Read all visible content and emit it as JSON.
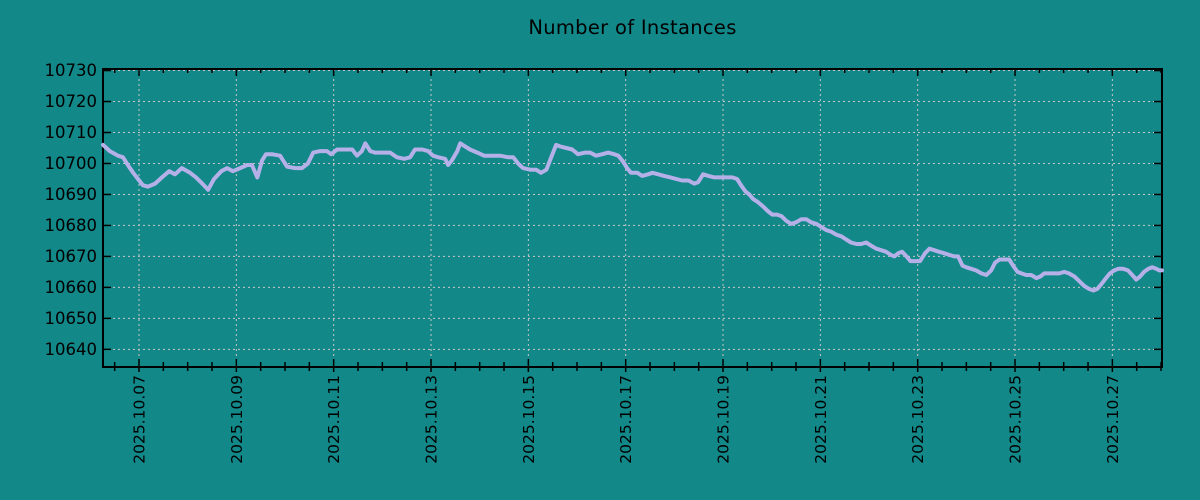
{
  "chart_data": {
    "type": "line",
    "title": "Number of Instances",
    "background_color": "#128889",
    "line_color": "#B6B0E8",
    "grid_color": "#C6C6C6",
    "axis_color": "#000000",
    "text_color": "#000000",
    "grid": true,
    "legend": "none",
    "x_axis": {
      "tick_labels": [
        "2025.10.07",
        "2025.10.09",
        "2025.10.11",
        "2025.10.13",
        "2025.10.15",
        "2025.10.17",
        "2025.10.19",
        "2025.10.21",
        "2025.10.23",
        "2025.10.25",
        "2025.10.27"
      ],
      "tick_days": [
        7,
        9,
        11,
        13,
        15,
        17,
        19,
        21,
        23,
        25,
        27
      ],
      "minor_tick_interval_days": 0.5,
      "range_days": [
        6.26,
        28.02
      ],
      "label_rotation_degrees": 90
    },
    "y_axis": {
      "tick_values": [
        10640,
        10650,
        10660,
        10670,
        10680,
        10690,
        10700,
        10710,
        10720,
        10730
      ],
      "range": [
        10634.3,
        10730.5
      ]
    },
    "series": [
      {
        "name": "instances",
        "points": [
          [
            6.26,
            10706
          ],
          [
            6.4,
            10704
          ],
          [
            6.57,
            10702.5
          ],
          [
            6.67,
            10702
          ],
          [
            6.77,
            10699.5
          ],
          [
            6.88,
            10697
          ],
          [
            6.98,
            10695
          ],
          [
            7.08,
            10693
          ],
          [
            7.18,
            10692.5
          ],
          [
            7.33,
            10693.5
          ],
          [
            7.47,
            10695.5
          ],
          [
            7.62,
            10697.5
          ],
          [
            7.74,
            10696.5
          ],
          [
            7.88,
            10698.5
          ],
          [
            8.05,
            10697
          ],
          [
            8.17,
            10695.5
          ],
          [
            8.3,
            10693.5
          ],
          [
            8.42,
            10691.5
          ],
          [
            8.54,
            10695
          ],
          [
            8.69,
            10697.5
          ],
          [
            8.81,
            10698.5
          ],
          [
            8.93,
            10697.5
          ],
          [
            9.08,
            10698.5
          ],
          [
            9.22,
            10699.5
          ],
          [
            9.32,
            10699.5
          ],
          [
            9.43,
            10695.5
          ],
          [
            9.53,
            10701
          ],
          [
            9.61,
            10703
          ],
          [
            9.73,
            10703
          ],
          [
            9.9,
            10702.5
          ],
          [
            10.04,
            10699
          ],
          [
            10.21,
            10698.5
          ],
          [
            10.35,
            10698.5
          ],
          [
            10.47,
            10700
          ],
          [
            10.58,
            10703.5
          ],
          [
            10.72,
            10704
          ],
          [
            10.86,
            10704
          ],
          [
            10.95,
            10703
          ],
          [
            11.07,
            10704.5
          ],
          [
            11.23,
            10704.5
          ],
          [
            11.38,
            10704.5
          ],
          [
            11.48,
            10702.5
          ],
          [
            11.58,
            10704
          ],
          [
            11.65,
            10706.5
          ],
          [
            11.75,
            10704
          ],
          [
            11.85,
            10703.5
          ],
          [
            12.02,
            10703.5
          ],
          [
            12.16,
            10703.5
          ],
          [
            12.3,
            10702
          ],
          [
            12.45,
            10701.5
          ],
          [
            12.57,
            10702
          ],
          [
            12.67,
            10704.5
          ],
          [
            12.82,
            10704.5
          ],
          [
            12.94,
            10704
          ],
          [
            13.04,
            10702.5
          ],
          [
            13.15,
            10702
          ],
          [
            13.29,
            10701.5
          ],
          [
            13.35,
            10699.5
          ],
          [
            13.43,
            10701
          ],
          [
            13.54,
            10704
          ],
          [
            13.6,
            10706.5
          ],
          [
            13.7,
            10705.5
          ],
          [
            13.8,
            10704.5
          ],
          [
            13.95,
            10703.5
          ],
          [
            14.09,
            10702.5
          ],
          [
            14.26,
            10702.5
          ],
          [
            14.42,
            10702.5
          ],
          [
            14.59,
            10702
          ],
          [
            14.69,
            10702
          ],
          [
            14.79,
            10700
          ],
          [
            14.89,
            10698.5
          ],
          [
            15.04,
            10698
          ],
          [
            15.16,
            10698
          ],
          [
            15.26,
            10697
          ],
          [
            15.37,
            10698
          ],
          [
            15.47,
            10702
          ],
          [
            15.57,
            10706
          ],
          [
            15.65,
            10705.5
          ],
          [
            15.78,
            10705
          ],
          [
            15.9,
            10704.5
          ],
          [
            16.02,
            10703
          ],
          [
            16.17,
            10703.5
          ],
          [
            16.27,
            10703.5
          ],
          [
            16.39,
            10702.5
          ],
          [
            16.52,
            10703
          ],
          [
            16.64,
            10703.5
          ],
          [
            16.76,
            10703
          ],
          [
            16.85,
            10702.5
          ],
          [
            16.95,
            10700.5
          ],
          [
            17.03,
            10698.5
          ],
          [
            17.11,
            10697
          ],
          [
            17.24,
            10697
          ],
          [
            17.34,
            10696
          ],
          [
            17.46,
            10696.5
          ],
          [
            17.55,
            10697
          ],
          [
            17.67,
            10696.5
          ],
          [
            17.79,
            10696
          ],
          [
            17.92,
            10695.5
          ],
          [
            18.04,
            10695
          ],
          [
            18.16,
            10694.5
          ],
          [
            18.29,
            10694.5
          ],
          [
            18.41,
            10693.5
          ],
          [
            18.49,
            10694
          ],
          [
            18.59,
            10696.5
          ],
          [
            18.7,
            10696
          ],
          [
            18.82,
            10695.5
          ],
          [
            18.94,
            10695.5
          ],
          [
            19.07,
            10695.5
          ],
          [
            19.19,
            10695.5
          ],
          [
            19.29,
            10695
          ],
          [
            19.37,
            10693
          ],
          [
            19.46,
            10691
          ],
          [
            19.54,
            10690
          ],
          [
            19.62,
            10688.5
          ],
          [
            19.72,
            10687.5
          ],
          [
            19.83,
            10686
          ],
          [
            19.93,
            10684.5
          ],
          [
            20.01,
            10683.5
          ],
          [
            20.11,
            10683.5
          ],
          [
            20.2,
            10683
          ],
          [
            20.3,
            10681.5
          ],
          [
            20.4,
            10680.5
          ],
          [
            20.5,
            10681
          ],
          [
            20.61,
            10682
          ],
          [
            20.71,
            10682
          ],
          [
            20.81,
            10681
          ],
          [
            20.92,
            10680.5
          ],
          [
            21.02,
            10679.5
          ],
          [
            21.12,
            10678.5
          ],
          [
            21.22,
            10678
          ],
          [
            21.33,
            10677
          ],
          [
            21.43,
            10676.5
          ],
          [
            21.53,
            10675.5
          ],
          [
            21.63,
            10674.5
          ],
          [
            21.74,
            10674
          ],
          [
            21.84,
            10674
          ],
          [
            21.94,
            10674.5
          ],
          [
            22.04,
            10673.5
          ],
          [
            22.15,
            10672.5
          ],
          [
            22.25,
            10672
          ],
          [
            22.35,
            10671.5
          ],
          [
            22.45,
            10670.5
          ],
          [
            22.52,
            10670
          ],
          [
            22.6,
            10671
          ],
          [
            22.68,
            10671.5
          ],
          [
            22.77,
            10670
          ],
          [
            22.85,
            10668.5
          ],
          [
            22.95,
            10668.5
          ],
          [
            23.05,
            10668.5
          ],
          [
            23.15,
            10671
          ],
          [
            23.24,
            10672.5
          ],
          [
            23.34,
            10672
          ],
          [
            23.44,
            10671.5
          ],
          [
            23.55,
            10671
          ],
          [
            23.65,
            10670.5
          ],
          [
            23.75,
            10670
          ],
          [
            23.83,
            10670
          ],
          [
            23.92,
            10667
          ],
          [
            24.0,
            10666.5
          ],
          [
            24.1,
            10666
          ],
          [
            24.2,
            10665.5
          ],
          [
            24.31,
            10664.5
          ],
          [
            24.41,
            10664
          ],
          [
            24.51,
            10665.5
          ],
          [
            24.59,
            10668
          ],
          [
            24.68,
            10669
          ],
          [
            24.78,
            10669
          ],
          [
            24.88,
            10669
          ],
          [
            24.96,
            10667
          ],
          [
            25.05,
            10665
          ],
          [
            25.13,
            10664.5
          ],
          [
            25.23,
            10664
          ],
          [
            25.33,
            10664
          ],
          [
            25.44,
            10663
          ],
          [
            25.52,
            10663.5
          ],
          [
            25.6,
            10664.5
          ],
          [
            25.7,
            10664.5
          ],
          [
            25.81,
            10664.5
          ],
          [
            25.91,
            10664.5
          ],
          [
            26.01,
            10665
          ],
          [
            26.11,
            10664.5
          ],
          [
            26.22,
            10663.5
          ],
          [
            26.32,
            10662
          ],
          [
            26.42,
            10660.5
          ],
          [
            26.52,
            10659.5
          ],
          [
            26.61,
            10659
          ],
          [
            26.69,
            10659.5
          ],
          [
            26.77,
            10661
          ],
          [
            26.87,
            10663
          ],
          [
            26.95,
            10664.5
          ],
          [
            27.04,
            10665.5
          ],
          [
            27.12,
            10666
          ],
          [
            27.22,
            10666
          ],
          [
            27.32,
            10665.5
          ],
          [
            27.41,
            10664
          ],
          [
            27.49,
            10662.5
          ],
          [
            27.57,
            10663.5
          ],
          [
            27.65,
            10665
          ],
          [
            27.74,
            10666
          ],
          [
            27.82,
            10666.5
          ],
          [
            27.9,
            10666
          ],
          [
            27.96,
            10665.5
          ],
          [
            28.02,
            10665.5
          ]
        ]
      }
    ]
  }
}
